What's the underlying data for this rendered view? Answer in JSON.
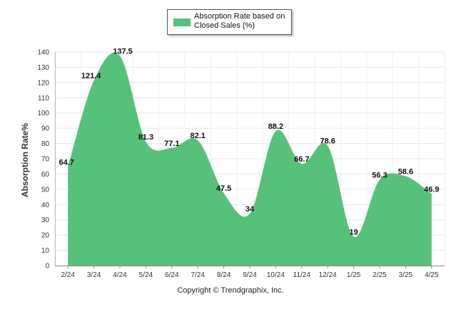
{
  "chart_data": {
    "type": "area",
    "categories": [
      "2/24",
      "3/24",
      "4/24",
      "5/24",
      "6/24",
      "7/24",
      "8/24",
      "9/24",
      "10/24",
      "11/24",
      "12/24",
      "1/25",
      "2/25",
      "3/25",
      "4/25"
    ],
    "series": [
      {
        "name": "Absorption Rate based on Closed Sales (%)",
        "values": [
          64.7,
          121.4,
          137.5,
          81.3,
          77.1,
          82.1,
          47.5,
          34,
          88.2,
          66.7,
          78.6,
          19,
          56.3,
          58.6,
          46.9
        ],
        "labels": [
          "64.7",
          "121.4",
          "137.5",
          "81.3",
          "77.1",
          "82.1",
          "47.5",
          "34",
          "88.2",
          "66.7",
          "78.6",
          "19",
          "56.3",
          "58.6",
          "46.9"
        ]
      }
    ],
    "ylabel": "Absorption Rate%",
    "ylim": [
      0,
      140
    ],
    "yticks": [
      0,
      10,
      20,
      30,
      40,
      50,
      60,
      70,
      80,
      90,
      100,
      110,
      120,
      130,
      140
    ],
    "grid": true,
    "legend": "top-center",
    "color": "#56c17a"
  },
  "legend_label": "Absorption Rate based on Closed Sales (%)",
  "footer": "Copyright © Trendgraphix, Inc."
}
